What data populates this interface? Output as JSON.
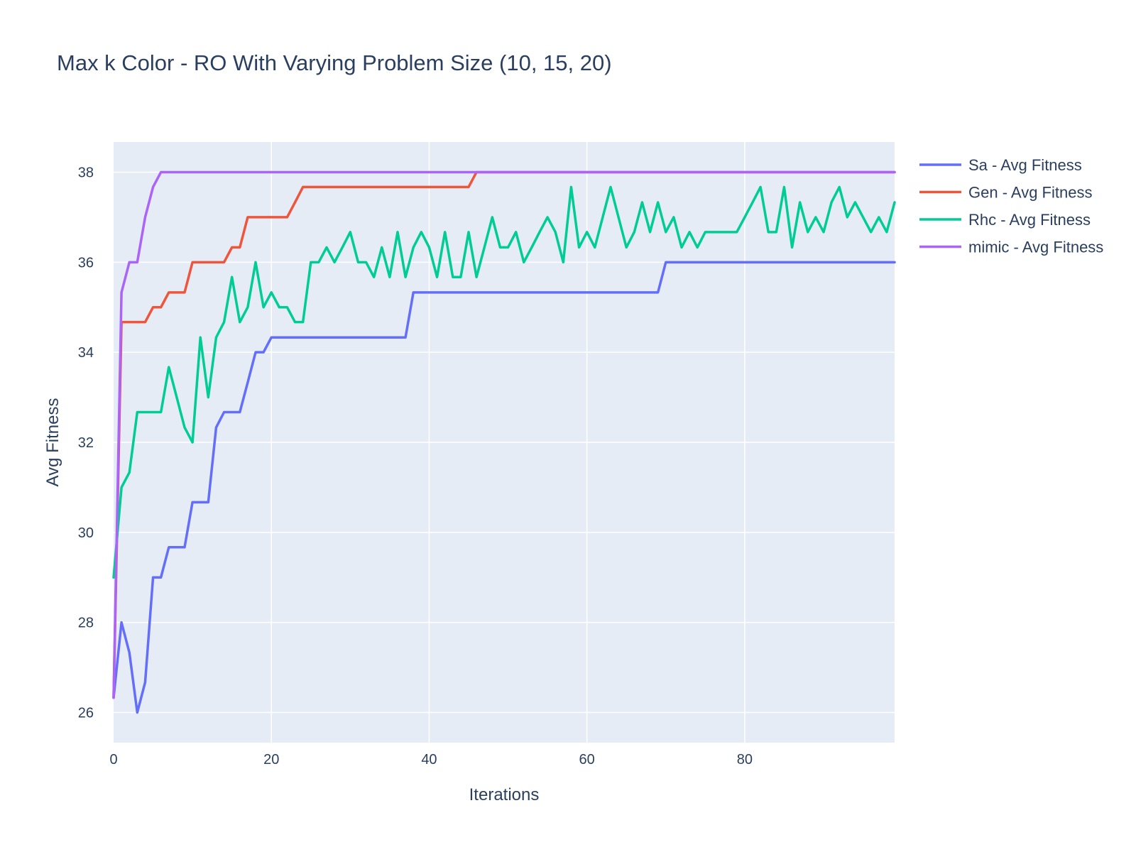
{
  "chart_data": {
    "type": "line",
    "title": "Max k Color - RO With Varying Problem Size (10, 15, 20)",
    "xlabel": "Iterations",
    "ylabel": "Avg Fitness",
    "xlim": [
      0,
      99
    ],
    "ylim": [
      25.33,
      38.67
    ],
    "xticks": [
      0,
      20,
      40,
      60,
      80
    ],
    "yticks": [
      26,
      28,
      30,
      32,
      34,
      36,
      38
    ],
    "grid": true,
    "legend_position": "right",
    "colors": {
      "plot_background": "#e5ecf6",
      "grid": "#ffffff",
      "text": "#2a3f5f"
    },
    "series": [
      {
        "name": "Sa - Avg Fitness",
        "color": "#636efa",
        "values": [
          26.33,
          28,
          27.33,
          26,
          26.67,
          29,
          29,
          29.67,
          29.67,
          29.67,
          30.67,
          30.67,
          30.67,
          32.33,
          32.67,
          32.67,
          32.67,
          33.33,
          34,
          34,
          34.33,
          34.33,
          34.33,
          34.33,
          34.33,
          34.33,
          34.33,
          34.33,
          34.33,
          34.33,
          34.33,
          34.33,
          34.33,
          34.33,
          34.33,
          34.33,
          34.33,
          34.33,
          35.33,
          35.33,
          35.33,
          35.33,
          35.33,
          35.33,
          35.33,
          35.33,
          35.33,
          35.33,
          35.33,
          35.33,
          35.33,
          35.33,
          35.33,
          35.33,
          35.33,
          35.33,
          35.33,
          35.33,
          35.33,
          35.33,
          35.33,
          35.33,
          35.33,
          35.33,
          35.33,
          35.33,
          35.33,
          35.33,
          35.33,
          35.33,
          36,
          36,
          36,
          36,
          36,
          36,
          36,
          36,
          36,
          36,
          36,
          36,
          36,
          36,
          36,
          36,
          36,
          36,
          36,
          36,
          36,
          36,
          36,
          36,
          36,
          36,
          36,
          36,
          36,
          36
        ]
      },
      {
        "name": "Gen - Avg Fitness",
        "color": "#ef553b",
        "values": [
          26.33,
          34.67,
          34.67,
          34.67,
          34.67,
          35,
          35,
          35.33,
          35.33,
          35.33,
          36,
          36,
          36,
          36,
          36,
          36.33,
          36.33,
          37,
          37,
          37,
          37,
          37,
          37,
          37.33,
          37.67,
          37.67,
          37.67,
          37.67,
          37.67,
          37.67,
          37.67,
          37.67,
          37.67,
          37.67,
          37.67,
          37.67,
          37.67,
          37.67,
          37.67,
          37.67,
          37.67,
          37.67,
          37.67,
          37.67,
          37.67,
          37.67,
          38,
          38,
          38,
          38,
          38,
          38,
          38,
          38,
          38,
          38,
          38,
          38,
          38,
          38,
          38,
          38,
          38,
          38,
          38,
          38,
          38,
          38,
          38,
          38,
          38,
          38,
          38,
          38,
          38,
          38,
          38,
          38,
          38,
          38,
          38,
          38,
          38,
          38,
          38,
          38,
          38,
          38,
          38,
          38,
          38,
          38,
          38,
          38,
          38,
          38,
          38,
          38,
          38,
          38
        ]
      },
      {
        "name": "Rhc - Avg Fitness",
        "color": "#00cc96",
        "values": [
          29,
          31,
          31.33,
          32.67,
          32.67,
          32.67,
          32.67,
          33.67,
          33,
          32.33,
          32,
          34.33,
          33,
          34.33,
          34.67,
          35.67,
          34.67,
          35,
          36,
          35,
          35.33,
          35,
          35,
          34.67,
          34.67,
          36,
          36,
          36.33,
          36,
          36.33,
          36.67,
          36,
          36,
          35.67,
          36.33,
          35.67,
          36.67,
          35.67,
          36.33,
          36.67,
          36.33,
          35.67,
          36.67,
          35.67,
          35.67,
          36.67,
          35.67,
          36.33,
          37,
          36.33,
          36.33,
          36.67,
          36,
          36.33,
          36.67,
          37,
          36.67,
          36,
          37.67,
          36.33,
          36.67,
          36.33,
          37,
          37.67,
          37,
          36.33,
          36.67,
          37.33,
          36.67,
          37.33,
          36.67,
          37,
          36.33,
          36.67,
          36.33,
          36.67,
          36.67,
          36.67,
          36.67,
          36.67,
          37,
          37.33,
          37.67,
          36.67,
          36.67,
          37.67,
          36.33,
          37.33,
          36.67,
          37,
          36.67,
          37.33,
          37.67,
          37,
          37.33,
          37,
          36.67,
          37,
          36.67,
          37.33
        ]
      },
      {
        "name": "mimic - Avg Fitness",
        "color": "#ab63fa",
        "values": [
          26.33,
          35.33,
          36,
          36,
          37,
          37.67,
          38,
          38,
          38,
          38,
          38,
          38,
          38,
          38,
          38,
          38,
          38,
          38,
          38,
          38,
          38,
          38,
          38,
          38,
          38,
          38,
          38,
          38,
          38,
          38,
          38,
          38,
          38,
          38,
          38,
          38,
          38,
          38,
          38,
          38,
          38,
          38,
          38,
          38,
          38,
          38,
          38,
          38,
          38,
          38,
          38,
          38,
          38,
          38,
          38,
          38,
          38,
          38,
          38,
          38,
          38,
          38,
          38,
          38,
          38,
          38,
          38,
          38,
          38,
          38,
          38,
          38,
          38,
          38,
          38,
          38,
          38,
          38,
          38,
          38,
          38,
          38,
          38,
          38,
          38,
          38,
          38,
          38,
          38,
          38,
          38,
          38,
          38,
          38,
          38,
          38,
          38,
          38,
          38,
          38
        ]
      }
    ]
  }
}
